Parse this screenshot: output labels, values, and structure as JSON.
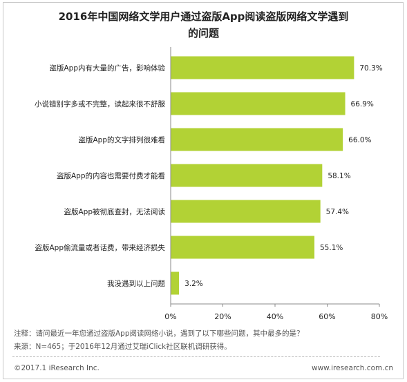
{
  "chart_data": {
    "type": "bar",
    "orientation": "horizontal",
    "title_line1": "2016年中国网络文学用户通过盗版App阅读盗版网络文学遇到",
    "title_line2": "的问题",
    "categories": [
      "盗版App内有大量的广告，影响体验",
      "小说错别字多或不完整，读起来很不舒服",
      "盗版App的文字排列很难看",
      "盗版App的内容也需要付费才能看",
      "盗版App被彻底查封，无法阅读",
      "盗版App偷流量或者话费，带来经济损失",
      "我没遇到以上问题"
    ],
    "values": [
      70.3,
      66.9,
      66.0,
      58.1,
      57.4,
      55.1,
      3.2
    ],
    "value_labels": [
      "70.3%",
      "66.9%",
      "66.0%",
      "58.1%",
      "57.4%",
      "55.1%",
      "3.2%"
    ],
    "xlim": [
      0,
      80
    ],
    "x_ticks": [
      0,
      20,
      40,
      60,
      80
    ],
    "x_tick_labels": [
      "0%",
      "20%",
      "40%",
      "60%",
      "80%"
    ],
    "bar_color": "#b2d235",
    "grid": false,
    "legend": "none"
  },
  "notes": {
    "note": "注释：请问最近一年您通过盗版App阅读网络小说，遇到了以下哪些问题，其中最多的是？",
    "source": "来源：N=465；于2016年12月通过艾瑞iClick社区联机调研获得。"
  },
  "footer": {
    "copyright": "©2017.1 iResearch Inc.",
    "website": "www.iresearch.com.cn"
  }
}
